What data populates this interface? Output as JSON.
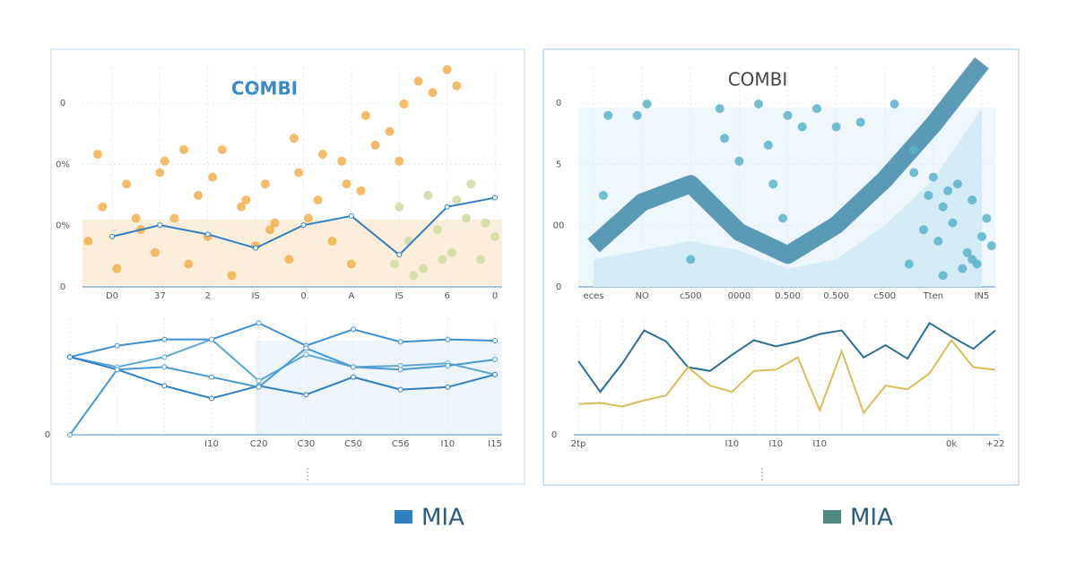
{
  "chart_data": [
    {
      "type": "scatter",
      "title": "COMBI",
      "title_color": "#3a8ac4",
      "y_labels": [
        "0",
        "0%",
        "0%",
        "0"
      ],
      "categories": [
        "D0",
        "37",
        "2",
        "IS",
        "0",
        "A",
        "IS",
        "6",
        "0"
      ],
      "ylim": [
        0,
        100
      ],
      "series": [
        {
          "type": "scatter",
          "color": "#f2b04e",
          "x": [
            -0.5,
            -0.2,
            0.1,
            0.3,
            0.6,
            0.9,
            1.1,
            1.3,
            1.6,
            1.8,
            2.0,
            2.3,
            2.5,
            2.7,
            3.0,
            3.2,
            3.4,
            3.7,
            3.9,
            4.1,
            4.3,
            4.6,
            4.8,
            5.0,
            5.2,
            -0.3,
            0.5,
            1.0,
            1.5,
            2.1,
            2.8,
            3.3,
            3.8,
            4.4,
            4.9,
            5.3,
            5.5,
            5.8,
            6.1,
            6.4,
            6.7,
            7.0,
            7.2,
            6.0
          ],
          "values": [
            20,
            35,
            8,
            45,
            25,
            15,
            55,
            30,
            10,
            40,
            22,
            60,
            5,
            35,
            18,
            45,
            28,
            12,
            50,
            30,
            38,
            20,
            55,
            10,
            42,
            58,
            30,
            50,
            60,
            48,
            38,
            25,
            65,
            58,
            45,
            75,
            62,
            68,
            80,
            90,
            85,
            95,
            88,
            55
          ]
        },
        {
          "type": "scatter",
          "color": "#cfdca0",
          "x": [
            5.9,
            6.2,
            6.5,
            6.8,
            7.1,
            7.4,
            7.7,
            8.0,
            6.0,
            6.6,
            7.2,
            7.8,
            6.3,
            6.9,
            7.5
          ],
          "values": [
            10,
            20,
            8,
            25,
            15,
            30,
            12,
            22,
            35,
            40,
            38,
            28,
            5,
            12,
            45
          ]
        },
        {
          "type": "line",
          "color": "#2f7fc1",
          "values": [
            22,
            27,
            23,
            17,
            27,
            31,
            14,
            35,
            39
          ]
        }
      ]
    },
    {
      "type": "line",
      "y_labels": [
        "0"
      ],
      "categories": [
        null,
        null,
        null,
        "I10",
        "C20",
        "C30",
        "C50",
        "C56",
        "I10",
        "I15"
      ],
      "ylim": [
        0,
        100
      ],
      "legend": {
        "name": "MIA",
        "color": "#2f7fc1"
      },
      "series": [
        {
          "type": "line",
          "color": "#3d8fd0",
          "values": [
            62,
            71,
            76,
            76,
            89,
            71,
            84,
            74,
            76,
            75
          ]
        },
        {
          "type": "line",
          "color": "#5aa7d6",
          "values": [
            62,
            54,
            62,
            76,
            43,
            64,
            54,
            55,
            57,
            48
          ]
        },
        {
          "type": "line",
          "color": "#2f7fc1",
          "values": [
            62,
            52,
            39,
            29,
            39,
            32,
            46,
            36,
            38,
            48
          ]
        },
        {
          "type": "line",
          "color": "#4a9ad4",
          "values": [
            0,
            52,
            54,
            46,
            38,
            69,
            54,
            52,
            55,
            60
          ]
        }
      ]
    },
    {
      "type": "area",
      "title": "COMBI",
      "title_color": "#444444",
      "y_labels": [
        "0",
        "5",
        "00",
        "0"
      ],
      "categories": [
        "eces",
        "NO",
        "c500",
        "0000",
        "0.500",
        "0.500",
        "c500",
        "Tten",
        "IN5"
      ],
      "ylim": [
        0,
        100
      ],
      "series": [
        {
          "type": "area",
          "color": "#d4ecf5",
          "values": [
            12,
            16,
            20,
            16,
            8,
            12,
            27,
            47,
            78
          ]
        },
        {
          "type": "band",
          "color": "#4a8fae",
          "values": [
            18,
            37,
            45,
            24,
            14,
            27,
            47,
            71,
            98
          ]
        },
        {
          "type": "scatter",
          "color": "#5bb3c9",
          "x": [
            0.3,
            0.9,
            1.1,
            2.6,
            2.7,
            3.0,
            3.4,
            3.6,
            3.7,
            4.0,
            4.3,
            4.6,
            5.0,
            5.5,
            6.2,
            6.6,
            6.9,
            7.2,
            7.5,
            7.8,
            8.1,
            6.8,
            7.1,
            7.4,
            7.7,
            8.0,
            6.6,
            7.0,
            7.3,
            7.6,
            7.9,
            8.2,
            6.5,
            7.2,
            7.8,
            0.2,
            2.0,
            3.9
          ],
          "values": [
            75,
            75,
            80,
            78,
            65,
            55,
            80,
            62,
            45,
            75,
            70,
            78,
            70,
            72,
            80,
            60,
            40,
            35,
            45,
            38,
            30,
            25,
            20,
            28,
            15,
            22,
            50,
            48,
            42,
            8,
            10,
            18,
            10,
            5,
            12,
            40,
            12,
            30
          ]
        }
      ]
    },
    {
      "type": "line",
      "y_labels": [
        "0"
      ],
      "categories": [
        "2tp",
        null,
        null,
        null,
        null,
        null,
        null,
        "I10",
        null,
        "I10",
        null,
        "I10",
        null,
        null,
        null,
        null,
        null,
        "0k",
        null,
        "+22"
      ],
      "ylim": [
        0,
        100
      ],
      "legend": {
        "name": "MIA",
        "color": "#4f8a80"
      },
      "series": [
        {
          "type": "line",
          "color": "#2c6f95",
          "values": [
            60,
            35,
            58,
            85,
            76,
            55,
            52,
            65,
            77,
            72,
            76,
            82,
            85,
            63,
            73,
            62,
            91,
            80,
            70,
            85
          ]
        },
        {
          "type": "line",
          "color": "#d6bf5a",
          "values": [
            25,
            26,
            23,
            28,
            32,
            55,
            40,
            35,
            52,
            53,
            63,
            20,
            68,
            18,
            40,
            37,
            50,
            77,
            55,
            53
          ]
        }
      ]
    }
  ]
}
